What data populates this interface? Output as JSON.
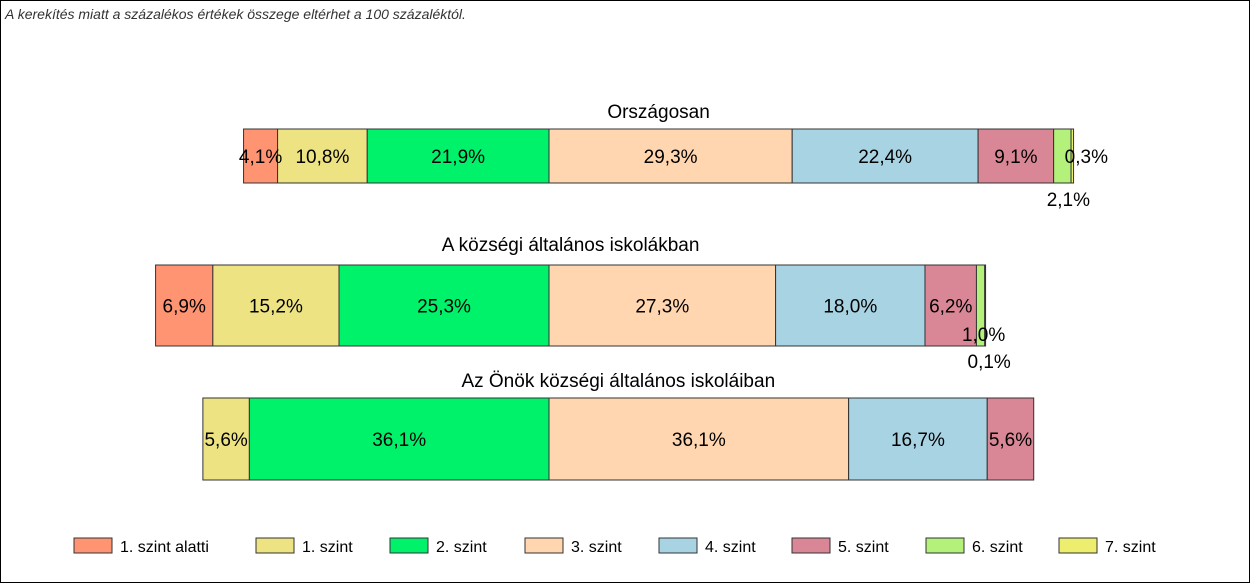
{
  "note": "A kerekítés miatt a  százalékos értékek összege eltérhet a 100 százaléktól.",
  "chart_data": {
    "type": "bar",
    "orientation": "horizontal-stacked",
    "categories": [
      "1. szint alatti",
      "1. szint",
      "2. szint",
      "3. szint",
      "4. szint",
      "5. szint",
      "6. szint",
      "7. szint"
    ],
    "colors": [
      "#FF9473",
      "#EEE383",
      "#00F26B",
      "#FFD6B0",
      "#A8D3E3",
      "#D98796",
      "#B3F17B",
      "#EEEE6E"
    ],
    "rows": [
      {
        "name": "Országosan",
        "values": [
          4.1,
          10.8,
          21.9,
          29.3,
          22.4,
          9.1,
          2.1,
          0.3
        ],
        "labels": [
          "4,1%",
          "10,8%",
          "21,9%",
          "29,3%",
          "22,4%",
          "9,1%",
          "2,1%",
          "0,3%"
        ]
      },
      {
        "name": "A községi általános iskolákban",
        "values": [
          6.9,
          15.2,
          25.3,
          27.3,
          18.0,
          6.2,
          1.0,
          0.1
        ],
        "labels": [
          "6,9%",
          "15,2%",
          "25,3%",
          "27,3%",
          "18,0%",
          "6,2%",
          "1,0%",
          "0,1%"
        ]
      },
      {
        "name": "Az Önök községi általános iskoláiban",
        "values": [
          0,
          5.6,
          36.1,
          36.1,
          16.7,
          5.6,
          0,
          0
        ],
        "labels": [
          "",
          "5,6%",
          "36,1%",
          "36,1%",
          "16,7%",
          "5,6%",
          "",
          ""
        ]
      }
    ],
    "legend_position": "bottom",
    "grid": false
  }
}
